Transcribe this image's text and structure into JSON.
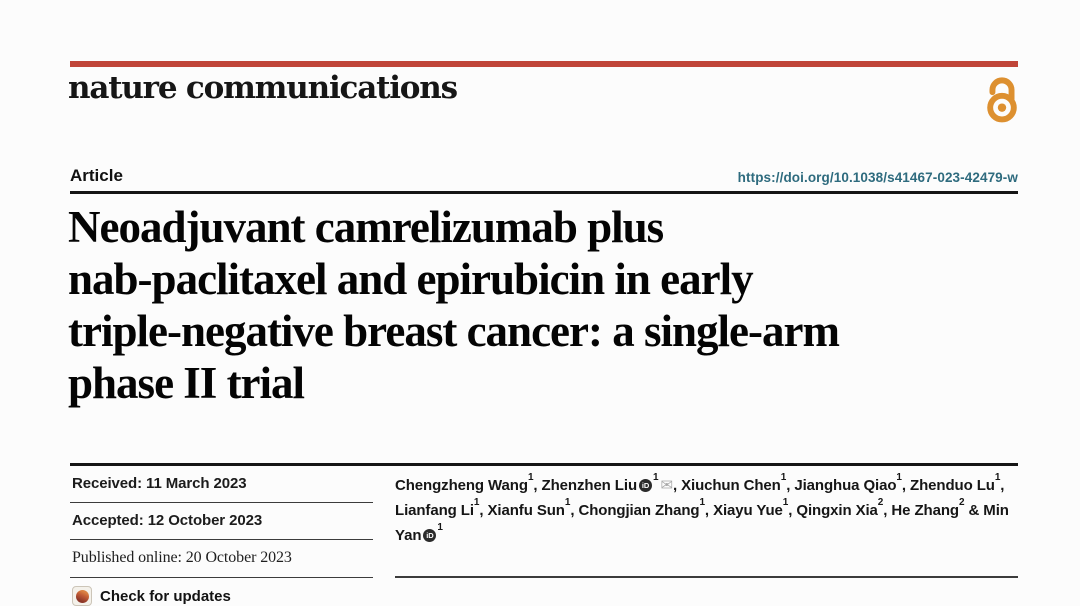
{
  "colors": {
    "top_bar_red": "#c04538",
    "open_access_orange": "#dd9030",
    "doi_link_teal": "#2e6b7e"
  },
  "header": {
    "journal": "nature communications"
  },
  "article_bar": {
    "label": "Article",
    "doi": "https://doi.org/10.1038/s41467-023-42479-w"
  },
  "title_lines": {
    "0": "Neoadjuvant camrelizumab plus",
    "1": "nab-paclitaxel and epirubicin in early",
    "2": "triple-negative breast cancer: a single-arm",
    "3": "phase II trial"
  },
  "dates": {
    "received_label": "Received:",
    "received_value": "11 March 2023",
    "accepted_label": "Accepted:",
    "accepted_value": "12 October 2023",
    "published_label": "Published online:",
    "published_value": "20 October 2023",
    "check_updates": "Check for updates"
  },
  "icons": {
    "orcid_text": "iD",
    "email_glyph": "✉"
  },
  "authors": {
    "list": [
      {
        "name": "Chengzheng Wang",
        "sup": "1",
        "orcid": false,
        "email": false
      },
      {
        "name": "Zhenzhen Liu",
        "sup": "1",
        "orcid": true,
        "email": true
      },
      {
        "name": "Xiuchun Chen",
        "sup": "1",
        "orcid": false,
        "email": false
      },
      {
        "name": "Jianghua Qiao",
        "sup": "1",
        "orcid": false,
        "email": false
      },
      {
        "name": "Zhenduo Lu",
        "sup": "1",
        "orcid": false,
        "email": false
      },
      {
        "name": "Lianfang Li",
        "sup": "1",
        "orcid": false,
        "email": false
      },
      {
        "name": "Xianfu Sun",
        "sup": "1",
        "orcid": false,
        "email": false
      },
      {
        "name": "Chongjian Zhang",
        "sup": "1",
        "orcid": false,
        "email": false
      },
      {
        "name": "Xiayu Yue",
        "sup": "1",
        "orcid": false,
        "email": false
      },
      {
        "name": "Qingxin Xia",
        "sup": "2",
        "orcid": false,
        "email": false
      },
      {
        "name": "He Zhang",
        "sup": "2",
        "orcid": false,
        "email": false
      },
      {
        "name": "Min Yan",
        "sup": "1",
        "orcid": true,
        "email": false
      }
    ]
  }
}
